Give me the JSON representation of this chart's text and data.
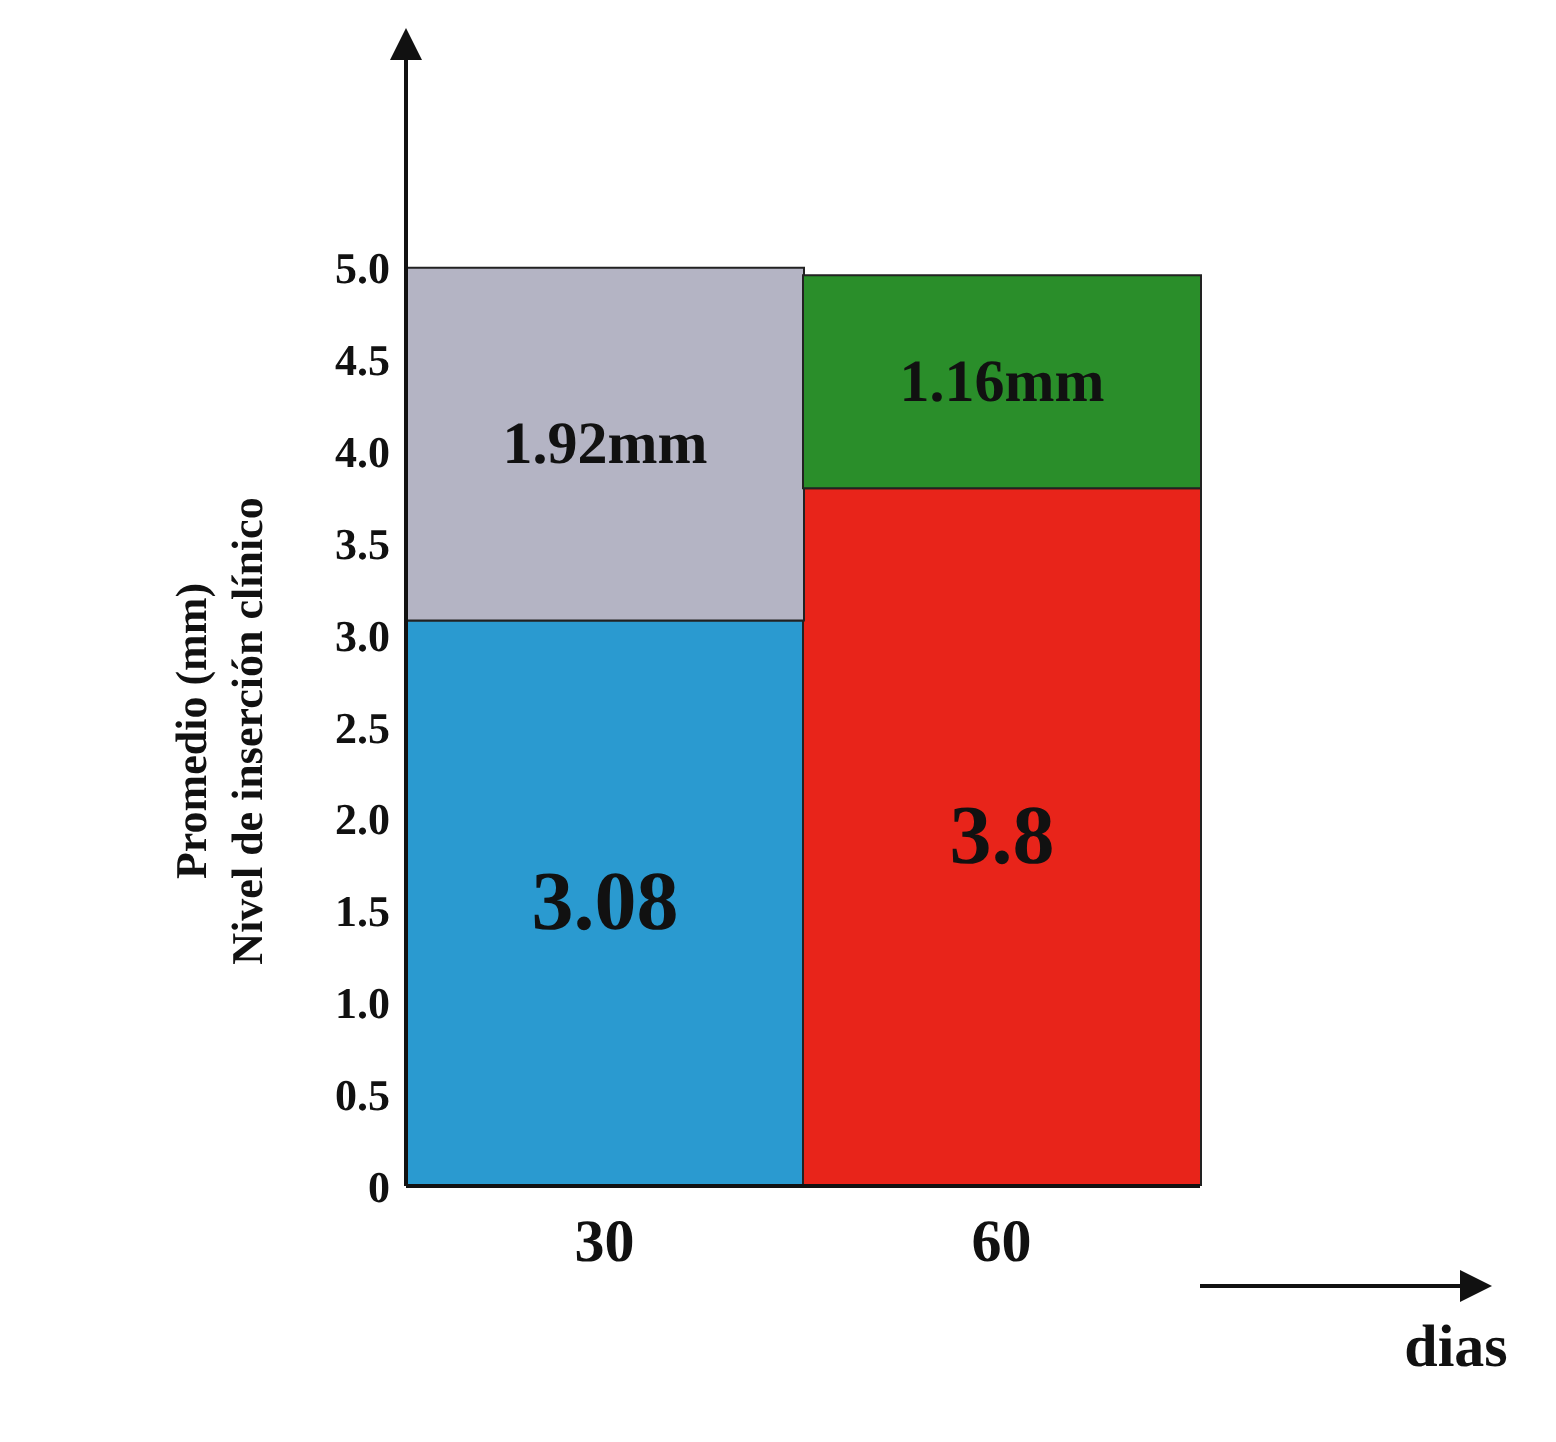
{
  "chart_data": {
    "type": "bar",
    "stacked": true,
    "ylabel": "Promedio (mm)\nNivel de inserción clínico",
    "xlabel": "dias",
    "categories": [
      "30",
      "60"
    ],
    "series": [
      {
        "colors": [
          "#2a9ad0",
          "#e8241a"
        ],
        "values": [
          3.08,
          3.8
        ],
        "value_labels": [
          "3.08",
          "3.8"
        ]
      },
      {
        "colors": [
          "#b4b4c4",
          "#2a8e2a"
        ],
        "values": [
          1.92,
          1.16
        ],
        "value_labels": [
          "1.92mm",
          "1.16mm"
        ]
      }
    ],
    "ylim": [
      0,
      5.5
    ],
    "yticks": [
      0,
      0.5,
      {
        "value": 1,
        "label": "1.0"
      },
      1.5,
      {
        "value": 2,
        "label": "2.0"
      },
      2.5,
      {
        "value": 3,
        "label": "3.0"
      },
      3.5,
      {
        "value": 4,
        "label": "4.0"
      },
      4.5,
      {
        "value": 5,
        "label": "5.0"
      }
    ],
    "grid": false,
    "legend": false
  }
}
